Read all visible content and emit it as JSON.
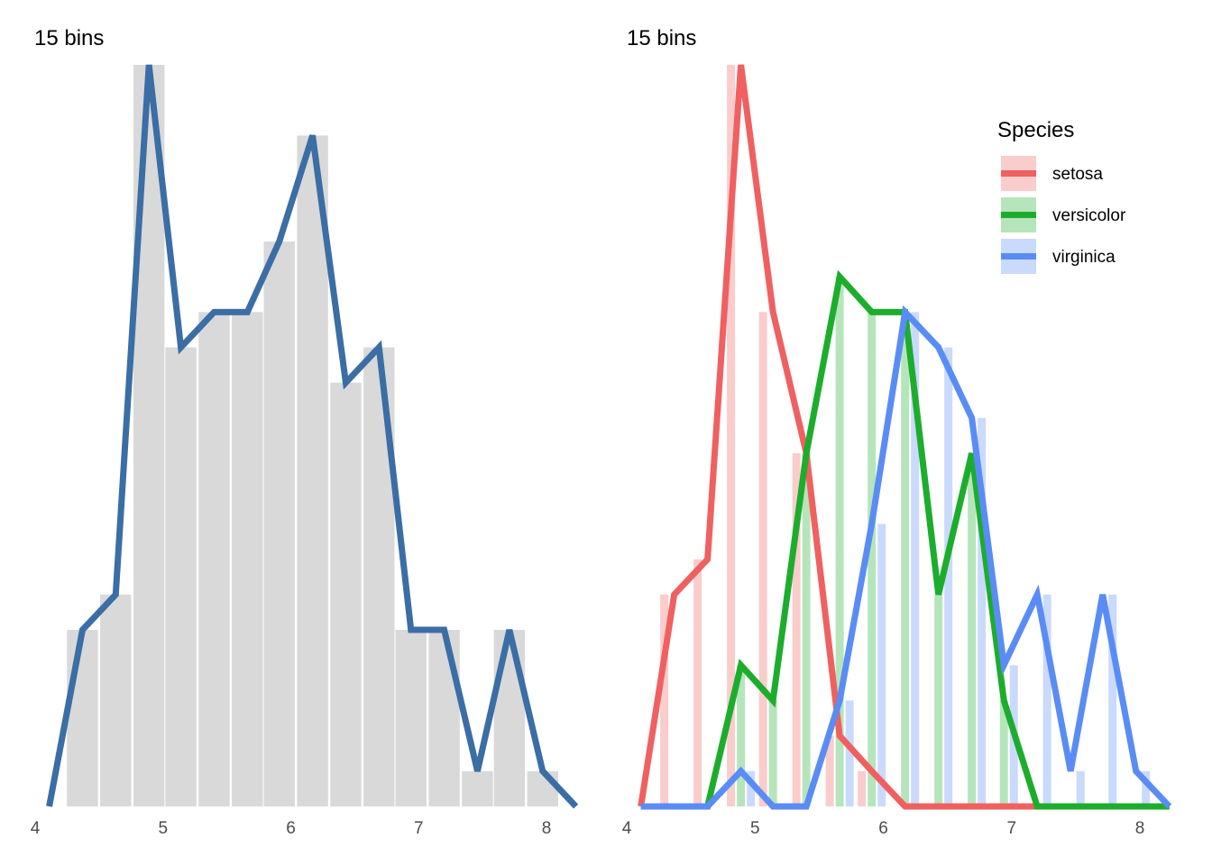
{
  "colors": {
    "bar_gray": "#d9d9d9",
    "line_blue": "#3a6ea5",
    "setosa": "#f06060",
    "versicolor": "#1cad2c",
    "virginica": "#5a8cf5"
  },
  "chart_data": [
    {
      "type": "bar",
      "title": "15 bins",
      "xlabel": "",
      "ylabel": "",
      "xlim": [
        4.0,
        8.3
      ],
      "ylim": [
        0,
        21
      ],
      "x_ticks": [
        "4",
        "5",
        "6",
        "7",
        "8"
      ],
      "grid": false,
      "bin_width": 0.257,
      "bins": {
        "x": [
          4.37,
          4.63,
          4.89,
          5.14,
          5.4,
          5.66,
          5.91,
          6.17,
          6.43,
          6.69,
          6.94,
          7.2,
          7.46,
          7.71,
          7.97
        ],
        "counts": [
          5,
          6,
          21,
          13,
          14,
          14,
          16,
          19,
          12,
          13,
          5,
          5,
          1,
          5,
          1
        ]
      },
      "frequency_polygon": {
        "x": [
          4.11,
          4.37,
          4.63,
          4.89,
          5.14,
          5.4,
          5.66,
          5.91,
          6.17,
          6.43,
          6.69,
          6.94,
          7.2,
          7.46,
          7.71,
          7.97,
          8.23
        ],
        "y": [
          0,
          5,
          6,
          21,
          13,
          14,
          14,
          16,
          19,
          12,
          13,
          5,
          5,
          1,
          5,
          1,
          0
        ]
      }
    },
    {
      "type": "bar",
      "title": "15 bins",
      "xlabel": "",
      "ylabel": "",
      "xlim": [
        4.0,
        8.3
      ],
      "ylim": [
        0,
        21
      ],
      "x_ticks": [
        "4",
        "5",
        "6",
        "7",
        "8"
      ],
      "grid": false,
      "legend": {
        "title": "Species",
        "position": "top-right"
      },
      "x": [
        4.11,
        4.37,
        4.63,
        4.89,
        5.14,
        5.4,
        5.66,
        5.91,
        6.17,
        6.43,
        6.69,
        6.94,
        7.2,
        7.46,
        7.71,
        7.97,
        8.23
      ],
      "series": [
        {
          "name": "setosa",
          "values": [
            0,
            6,
            7,
            21,
            14,
            10,
            2,
            1,
            0,
            0,
            0,
            0,
            0,
            0,
            0,
            0,
            0
          ]
        },
        {
          "name": "versicolor",
          "values": [
            0,
            0,
            0,
            4,
            3,
            10,
            15,
            14,
            14,
            6,
            10,
            3,
            0,
            0,
            0,
            0,
            0
          ]
        },
        {
          "name": "virginica",
          "values": [
            0,
            0,
            0,
            1,
            0,
            0,
            3,
            8,
            14,
            13,
            11,
            4,
            6,
            1,
            6,
            1,
            0
          ]
        }
      ]
    }
  ]
}
